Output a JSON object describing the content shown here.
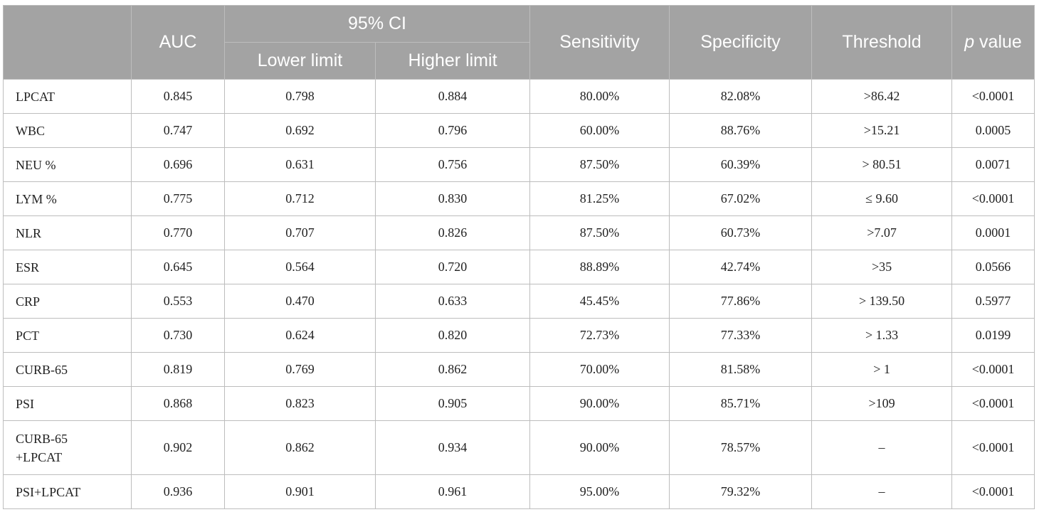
{
  "header": {
    "auc": "AUC",
    "ci": "95% CI",
    "lower": "Lower limit",
    "higher": "Higher limit",
    "sensitivity": "Sensitivity",
    "specificity": "Specificity",
    "threshold": "Threshold",
    "p_italic": "p",
    "p_rest": " value"
  },
  "rows": [
    {
      "name": [
        "LPCAT"
      ],
      "auc": "0.845",
      "lower": "0.798",
      "higher": "0.884",
      "sens": "80.00%",
      "spec": "82.08%",
      "thr": ">86.42",
      "p": "<0.0001"
    },
    {
      "name": [
        "WBC"
      ],
      "auc": "0.747",
      "lower": "0.692",
      "higher": "0.796",
      "sens": "60.00%",
      "spec": "88.76%",
      "thr": ">15.21",
      "p": "0.0005"
    },
    {
      "name": [
        "NEU %"
      ],
      "auc": "0.696",
      "lower": "0.631",
      "higher": "0.756",
      "sens": "87.50%",
      "spec": "60.39%",
      "thr": "> 80.51",
      "p": "0.0071"
    },
    {
      "name": [
        "LYM %"
      ],
      "auc": "0.775",
      "lower": "0.712",
      "higher": "0.830",
      "sens": "81.25%",
      "spec": "67.02%",
      "thr": "≤ 9.60",
      "p": "<0.0001"
    },
    {
      "name": [
        "NLR"
      ],
      "auc": "0.770",
      "lower": "0.707",
      "higher": "0.826",
      "sens": "87.50%",
      "spec": "60.73%",
      "thr": ">7.07",
      "p": "0.0001"
    },
    {
      "name": [
        "ESR"
      ],
      "auc": "0.645",
      "lower": "0.564",
      "higher": "0.720",
      "sens": "88.89%",
      "spec": "42.74%",
      "thr": ">35",
      "p": "0.0566"
    },
    {
      "name": [
        "CRP"
      ],
      "auc": "0.553",
      "lower": "0.470",
      "higher": "0.633",
      "sens": "45.45%",
      "spec": "77.86%",
      "thr": "> 139.50",
      "p": "0.5977"
    },
    {
      "name": [
        "PCT"
      ],
      "auc": "0.730",
      "lower": "0.624",
      "higher": "0.820",
      "sens": "72.73%",
      "spec": "77.33%",
      "thr": "> 1.33",
      "p": "0.0199"
    },
    {
      "name": [
        "CURB-65"
      ],
      "auc": "0.819",
      "lower": "0.769",
      "higher": "0.862",
      "sens": "70.00%",
      "spec": "81.58%",
      "thr": "> 1",
      "p": "<0.0001"
    },
    {
      "name": [
        "PSI"
      ],
      "auc": "0.868",
      "lower": "0.823",
      "higher": "0.905",
      "sens": "90.00%",
      "spec": "85.71%",
      "thr": ">109",
      "p": "<0.0001"
    },
    {
      "name": [
        "CURB-65",
        "+LPCAT"
      ],
      "auc": "0.902",
      "lower": "0.862",
      "higher": "0.934",
      "sens": "90.00%",
      "spec": "78.57%",
      "thr": "–",
      "p": "<0.0001"
    },
    {
      "name": [
        "PSI+LPCAT"
      ],
      "auc": "0.936",
      "lower": "0.901",
      "higher": "0.961",
      "sens": "95.00%",
      "spec": "79.32%",
      "thr": "–",
      "p": "<0.0001"
    }
  ]
}
